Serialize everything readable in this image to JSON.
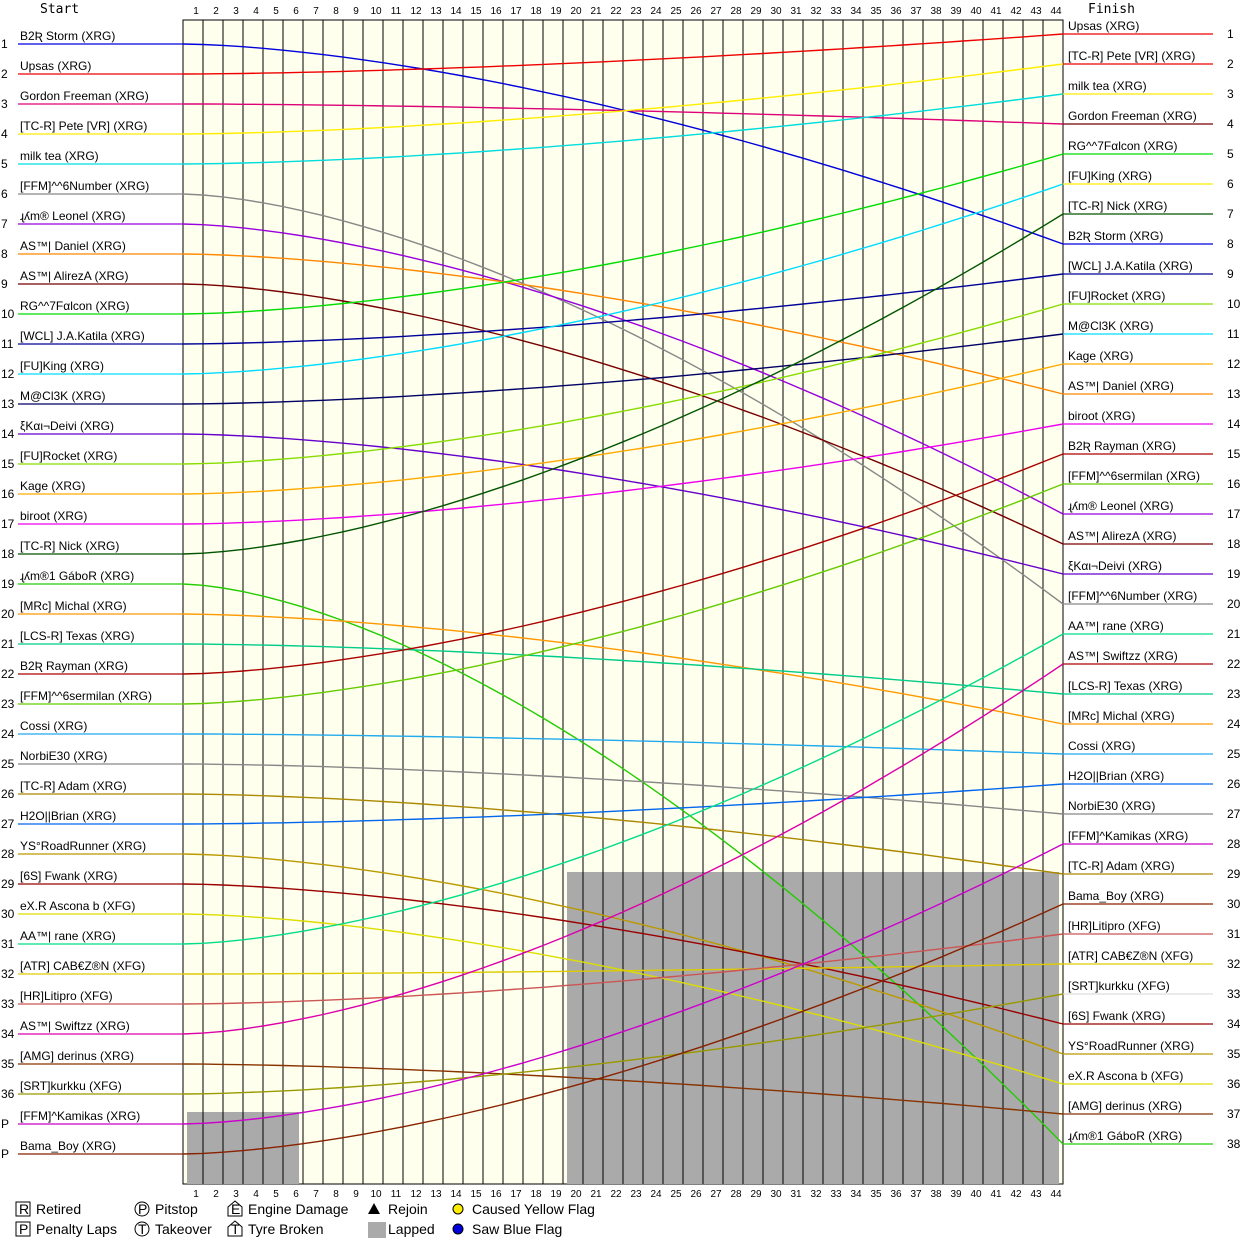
{
  "headers": {
    "start": "Start",
    "finish": "Finish"
  },
  "laps": [
    1,
    2,
    3,
    4,
    5,
    6,
    7,
    8,
    9,
    10,
    11,
    12,
    13,
    14,
    15,
    16,
    17,
    18,
    19,
    20,
    21,
    22,
    23,
    24,
    25,
    26,
    27,
    28,
    29,
    30,
    31,
    32,
    33,
    34,
    35,
    36,
    37,
    38,
    39,
    40,
    41,
    42,
    43,
    44
  ],
  "start_positions": [
    "1",
    "2",
    "3",
    "4",
    "5",
    "6",
    "7",
    "8",
    "9",
    "10",
    "11",
    "12",
    "13",
    "14",
    "15",
    "16",
    "17",
    "18",
    "19",
    "20",
    "21",
    "22",
    "23",
    "24",
    "25",
    "26",
    "27",
    "28",
    "29",
    "30",
    "31",
    "32",
    "33",
    "34",
    "35",
    "36",
    "P",
    "P"
  ],
  "finish_positions": [
    "1",
    "2",
    "3",
    "4",
    "5",
    "6",
    "7",
    "8",
    "9",
    "10",
    "11",
    "12",
    "13",
    "14",
    "15",
    "16",
    "17",
    "18",
    "19",
    "20",
    "21",
    "22",
    "23",
    "24",
    "25",
    "26",
    "27",
    "28",
    "29",
    "30",
    "31",
    "32",
    "33",
    "34",
    "35",
    "36",
    "37",
    "38"
  ],
  "chart_data": {
    "type": "line",
    "title": "",
    "x_axis": "lap",
    "start_grid": [
      {
        "name": "B2Ʀ Storm (XRG)",
        "color": "#0000dd"
      },
      {
        "name": "Upsas (XRG)",
        "color": "#ee0000"
      },
      {
        "name": "Gordon Freeman (XRG)",
        "color": "#dd0077"
      },
      {
        "name": "[TC-R] Pete [VR] (XRG)",
        "color": "#ffee00"
      },
      {
        "name": "milk tea (XRG)",
        "color": "#00dddd"
      },
      {
        "name": "[FFM]^^6Number (XRG)",
        "color": "#888888"
      },
      {
        "name": "ɻʎm® Leonel (XRG)",
        "color": "#9900dd"
      },
      {
        "name": "AS™| Daniel (XRG)",
        "color": "#ff8800"
      },
      {
        "name": "AS™| AlirezA (XRG)",
        "color": "#770000"
      },
      {
        "name": "RG^^7Fαlcon (XRG)",
        "color": "#00dd00"
      },
      {
        "name": "[WCL] J.A.Katila (XRG)",
        "color": "#000099"
      },
      {
        "name": "[FU]King (XRG)",
        "color": "#00ddff"
      },
      {
        "name": "M@Cl3K (XRG)",
        "color": "#000066"
      },
      {
        "name": "ξKαι¬Deivi (XRG)",
        "color": "#6600cc"
      },
      {
        "name": "[FU]Rocket (XRG)",
        "color": "#88dd00"
      },
      {
        "name": "Kage (XRG)",
        "color": "#ffaa00"
      },
      {
        "name": "biroot (XRG)",
        "color": "#ee00ee"
      },
      {
        "name": "[TC-R] Nick (XRG)",
        "color": "#005500"
      },
      {
        "name": "ɻʎm®1 GáboR (XRG)",
        "color": "#22cc00"
      },
      {
        "name": "[MRc] Michal (XRG)",
        "color": "#ff9900"
      },
      {
        "name": "[LCS-R] Texas (XRG)",
        "color": "#00cc88"
      },
      {
        "name": "B2Ʀ Rayman (XRG)",
        "color": "#aa0000"
      },
      {
        "name": "[FFM]^^6sermilan (XRG)",
        "color": "#66cc00"
      },
      {
        "name": "Cossi (XRG)",
        "color": "#22aaee"
      },
      {
        "name": "NorbiE30 (XRG)",
        "color": "#888888"
      },
      {
        "name": "[TC-R] Adam (XRG)",
        "color": "#aa8800"
      },
      {
        "name": "H2O||Brian (XRG)",
        "color": "#0066ee"
      },
      {
        "name": "YS°RoadRunner (XRG)",
        "color": "#bb9900"
      },
      {
        "name": "[6S] Fwank (XRG)",
        "color": "#990000"
      },
      {
        "name": "eX.R Ascona b (XFG)",
        "color": "#dddd00"
      },
      {
        "name": "AA™| rane (XRG)",
        "color": "#00dd88"
      },
      {
        "name": "[ATR] CAB€Z®N (XFG)",
        "color": "#ddcc00"
      },
      {
        "name": "[HR]Litipro (XFG)",
        "color": "#cc5555"
      },
      {
        "name": "AS™| Swiftzz (XRG)",
        "color": "#dd00aa"
      },
      {
        "name": "[AMG] derinus (XRG)",
        "color": "#883300"
      },
      {
        "name": "[SRT]kurkku (XFG)",
        "color": "#999900"
      },
      {
        "name": "[FFM]^Kamikas (XRG)",
        "color": "#cc00cc"
      },
      {
        "name": "Bama_Boy (XRG)",
        "color": "#882200"
      }
    ],
    "finish_order": [
      {
        "name": "Upsas (XRG)",
        "color": "#ee0000"
      },
      {
        "name": "[TC-R] Pete [VR] (XRG)",
        "color": "#ee0000"
      },
      {
        "name": "milk tea (XRG)",
        "color": "#ffee00"
      },
      {
        "name": "Gordon Freeman (XRG)",
        "color": "#770000"
      },
      {
        "name": "RG^^7Fαlcon (XRG)",
        "color": "#00dd00"
      },
      {
        "name": "[FU]King (XRG)",
        "color": "#ffee00"
      },
      {
        "name": "[TC-R] Nick (XRG)",
        "color": "#005500"
      },
      {
        "name": "B2Ʀ Storm (XRG)",
        "color": "#0000dd"
      },
      {
        "name": "[WCL] J.A.Katila (XRG)",
        "color": "#000099"
      },
      {
        "name": "[FU]Rocket (XRG)",
        "color": "#88dd00"
      },
      {
        "name": "M@Cl3K (XRG)",
        "color": "#00ddff"
      },
      {
        "name": "Kage (XRG)",
        "color": "#ffaa00"
      },
      {
        "name": "AS™| Daniel (XRG)",
        "color": "#ff8800"
      },
      {
        "name": "biroot (XRG)",
        "color": "#ee00ee"
      },
      {
        "name": "B2Ʀ Rayman (XRG)",
        "color": "#aa0000"
      },
      {
        "name": "[FFM]^^6sermilan (XRG)",
        "color": "#66cc00"
      },
      {
        "name": "ɻʎm® Leonel (XRG)",
        "color": "#9900dd"
      },
      {
        "name": "AS™| AlirezA (XRG)",
        "color": "#770000"
      },
      {
        "name": "ξKαι¬Deivi (XRG)",
        "color": "#6600cc"
      },
      {
        "name": "[FFM]^^6Number (XRG)",
        "color": "#888888"
      },
      {
        "name": "AA™| rane (XRG)",
        "color": "#00dd88"
      },
      {
        "name": "AS™| Swiftzz (XRG)",
        "color": "#aa0000"
      },
      {
        "name": "[LCS-R] Texas (XRG)",
        "color": "#00cc88"
      },
      {
        "name": "[MRc] Michal (XRG)",
        "color": "#ff9900"
      },
      {
        "name": "Cossi (XRG)",
        "color": "#22aaee"
      },
      {
        "name": "H2O||Brian (XRG)",
        "color": "#0066ee"
      },
      {
        "name": "NorbiE30 (XRG)",
        "color": "#888888"
      },
      {
        "name": "[FFM]^Kamikas (XRG)",
        "color": "#cc00cc"
      },
      {
        "name": "[TC-R] Adam (XRG)",
        "color": "#aa8800"
      },
      {
        "name": "Bama_Boy (XRG)",
        "color": "#882200"
      },
      {
        "name": "[HR]Litipro (XFG)",
        "color": "#cc5555"
      },
      {
        "name": "[ATR] CAB€Z®N (XFG)",
        "color": "#ddcc00"
      },
      {
        "name": "[SRT]kurkku (XFG)",
        "color": "#dddddd"
      },
      {
        "name": "[6S] Fwank (XRG)",
        "color": "#990000"
      },
      {
        "name": "YS°RoadRunner (XRG)",
        "color": "#bb9900"
      },
      {
        "name": "eX.R Ascona b (XFG)",
        "color": "#dddd00"
      },
      {
        "name": "[AMG] derinus (XRG)",
        "color": "#883300"
      },
      {
        "name": "ɻʎm®1 GáboR (XRG)",
        "color": "#22cc00"
      }
    ],
    "finish_extra_labels": [
      "34<",
      "35<",
      "36<",
      "37<",
      "38<"
    ],
    "legend": [
      {
        "symbol": "R",
        "label": "Retired"
      },
      {
        "symbol": "P",
        "label": "Pitstop"
      },
      {
        "symbol": "E",
        "label": "Engine Damage"
      },
      {
        "symbol": "triangle",
        "label": "Rejoin"
      },
      {
        "symbol": "yellow-dot",
        "label": "Caused Yellow Flag"
      },
      {
        "symbol": "P-box",
        "label": "Penalty Laps"
      },
      {
        "symbol": "T",
        "label": "Takeover"
      },
      {
        "symbol": "T-tyre",
        "label": "Tyre Broken"
      },
      {
        "symbol": "gray-box",
        "label": "Lapped"
      },
      {
        "symbol": "blue-dot",
        "label": "Saw Blue Flag"
      }
    ],
    "lapped_areas": [
      {
        "from_lap": 1,
        "to_lap": 6,
        "from_position": 37
      },
      {
        "from_lap": 20,
        "to_lap": 44,
        "from_position": 29
      }
    ],
    "colors": {
      "background": "#ffffee",
      "lapped": "#aaaaaa",
      "blue_flag": "#0000dd",
      "yellow_flag": "#ffee00"
    }
  }
}
